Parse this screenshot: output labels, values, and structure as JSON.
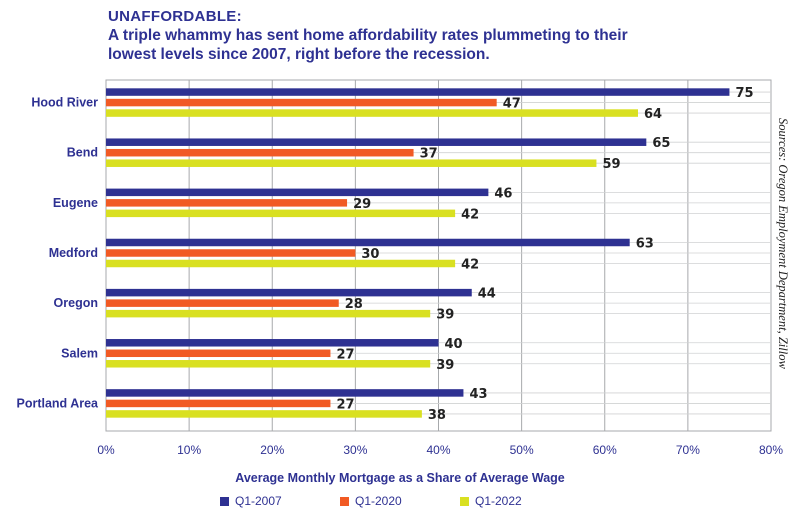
{
  "header": {
    "kicker": "UNAFFORDABLE:",
    "subtitle": "A triple whammy has sent home affordability rates plummeting to their lowest levels since 2007, right before the recession."
  },
  "source": "Sources: Oregon Employment Department, Zillow",
  "colors": {
    "q2007": "#2e3192",
    "q2020": "#f15a24",
    "q2022": "#d9e021",
    "grid": "#a7a9ac",
    "text": "#2e3192"
  },
  "chart_data": {
    "type": "bar",
    "orientation": "horizontal",
    "categories": [
      "Hood River",
      "Bend",
      "Eugene",
      "Medford",
      "Oregon",
      "Salem",
      "Portland Area"
    ],
    "series": [
      {
        "name": "Q1-2007",
        "color": "#2e3192",
        "values": [
          75,
          65,
          46,
          63,
          44,
          40,
          43
        ]
      },
      {
        "name": "Q1-2020",
        "color": "#f15a24",
        "values": [
          47,
          37,
          29,
          30,
          28,
          27,
          27
        ]
      },
      {
        "name": "Q1-2022",
        "color": "#d9e021",
        "values": [
          64,
          59,
          42,
          42,
          39,
          39,
          38
        ]
      }
    ],
    "xlabel": "Average Monthly Mortgage as a Share of Average Wage",
    "xlim": [
      0,
      80
    ],
    "xticks": [
      "0%",
      "10%",
      "20%",
      "30%",
      "40%",
      "50%",
      "60%",
      "70%",
      "80%"
    ],
    "grid": true,
    "legend": "bottom"
  }
}
